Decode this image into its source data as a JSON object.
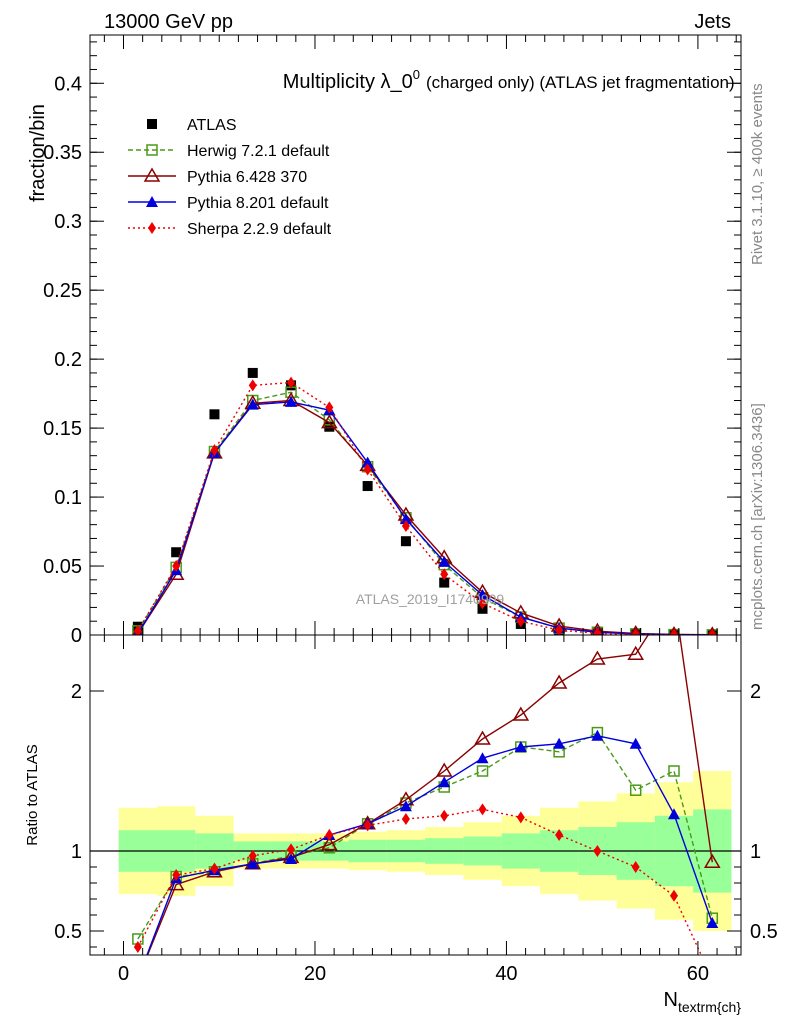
{
  "header": {
    "left": "13000 GeV pp",
    "right": "Jets"
  },
  "side_labels": {
    "rivet": "Rivet 3.1.10, ≥ 400k events",
    "mcplots": "mcplots.cern.ch [arXiv:1306.3436]"
  },
  "colors": {
    "ATLAS": "#000000",
    "Herwig": "#4a9a1a",
    "Pythia6": "#8b0000",
    "Pythia8": "#0000dd",
    "Sherpa": "#ee0000",
    "band_inner": "#99ff99",
    "band_outer": "#ffff99"
  },
  "chart_data": [
    {
      "type": "scatter",
      "title_main": "Multiplicity λ_0",
      "title_sup": "0",
      "title_rest": "(charged only) (ATLAS jet fragmentation)",
      "ylabel": "fraction/bin",
      "watermark": "ATLAS_2019_I1740909",
      "ylim": [
        0,
        0.435
      ],
      "yticks": [
        0,
        0.05,
        0.1,
        0.15,
        0.2,
        0.25,
        0.3,
        0.35,
        0.4
      ],
      "ytick_labels": [
        "0",
        "0.05",
        "0.1",
        "0.15",
        "0.2",
        "0.25",
        "0.3",
        "0.35",
        "0.4"
      ],
      "x": [
        1.5,
        5.5,
        9.5,
        13.5,
        17.5,
        21.5,
        25.5,
        29.5,
        33.5,
        37.5,
        41.5,
        45.5,
        49.5,
        53.5,
        57.5,
        61.5
      ],
      "series": [
        {
          "name": "ATLAS",
          "style": "data",
          "values": [
            0.006,
            0.06,
            0.16,
            0.19,
            0.181,
            0.151,
            0.108,
            0.068,
            0.038,
            0.019,
            0.008,
            0.003,
            0.0012,
            0.0005,
            0.0002,
            0.0001
          ]
        },
        {
          "name": "Herwig 7.2.1 default",
          "style": "herwig",
          "values": [
            0.003,
            0.049,
            0.133,
            0.17,
            0.176,
            0.156,
            0.122,
            0.085,
            0.051,
            0.027,
            0.013,
            0.005,
            0.002,
            0.0008,
            0.0003,
            0.0001
          ]
        },
        {
          "name": "Pythia 6.428 370",
          "style": "pythia6",
          "values": [
            0.001,
            0.044,
            0.132,
            0.168,
            0.17,
            0.154,
            0.123,
            0.087,
            0.056,
            0.031,
            0.016,
            0.0065,
            0.0028,
            0.0011,
            0.0004,
            0.0002
          ]
        },
        {
          "name": "Pythia 8.201 default",
          "style": "pythia8",
          "values": [
            0.001,
            0.047,
            0.132,
            0.167,
            0.169,
            0.163,
            0.125,
            0.084,
            0.053,
            0.029,
            0.013,
            0.005,
            0.002,
            0.0008,
            0.0003,
            0.0001
          ]
        },
        {
          "name": "Sherpa 2.2.9 default",
          "style": "sherpa",
          "values": [
            0.003,
            0.05,
            0.134,
            0.181,
            0.183,
            0.165,
            0.12,
            0.079,
            0.044,
            0.023,
            0.01,
            0.0035,
            0.0012,
            0.0004,
            0.0001,
            0.0
          ]
        }
      ]
    },
    {
      "type": "line",
      "ylabel": "Ratio to ATLAS",
      "xlabel_main": "N",
      "xlabel_sub": "textrm{ch}",
      "xlim": [
        -3.5,
        64.5
      ],
      "ylim": [
        0.35,
        2.35
      ],
      "xticks": [
        0,
        20,
        40,
        60
      ],
      "xtick_labels": [
        "0",
        "20",
        "40",
        "60"
      ],
      "yticks": [
        0.5,
        1,
        2
      ],
      "ytick_labels": [
        "0.5",
        "1",
        "2"
      ],
      "reference_line": 1,
      "band_edges": [
        -0.5,
        3.5,
        7.5,
        11.5,
        15.5,
        19.5,
        23.5,
        27.5,
        31.5,
        35.5,
        39.5,
        43.5,
        47.5,
        51.5,
        55.5,
        59.5,
        63.5
      ],
      "band_inner": [
        0.13,
        0.13,
        0.11,
        0.06,
        0.06,
        0.06,
        0.07,
        0.07,
        0.08,
        0.09,
        0.11,
        0.13,
        0.15,
        0.18,
        0.22,
        0.26
      ],
      "band_outer": [
        0.27,
        0.28,
        0.22,
        0.11,
        0.11,
        0.11,
        0.12,
        0.13,
        0.15,
        0.18,
        0.22,
        0.27,
        0.31,
        0.36,
        0.43,
        0.5
      ],
      "x": [
        1.5,
        5.5,
        9.5,
        13.5,
        17.5,
        21.5,
        25.5,
        29.5,
        33.5,
        37.5,
        41.5,
        45.5,
        49.5,
        53.5,
        57.5,
        61.5
      ],
      "series": [
        {
          "name": "Herwig 7.2.1 default",
          "style": "herwig",
          "values": [
            0.45,
            0.84,
            0.87,
            0.92,
            0.97,
            1.02,
            1.17,
            1.3,
            1.4,
            1.5,
            1.65,
            1.62,
            1.74,
            1.38,
            1.5,
            0.58
          ]
        },
        {
          "name": "Pythia 6.428 370",
          "style": "pythia6",
          "values": [
            0.2,
            0.79,
            0.87,
            0.92,
            0.96,
            1.04,
            1.17,
            1.32,
            1.5,
            1.7,
            1.85,
            2.05,
            2.2,
            2.23,
            2.6,
            0.93
          ]
        },
        {
          "name": "Pythia 8.201 default",
          "style": "pythia8",
          "values": [
            0.2,
            0.83,
            0.88,
            0.92,
            0.95,
            1.1,
            1.17,
            1.28,
            1.43,
            1.58,
            1.65,
            1.67,
            1.72,
            1.67,
            1.23,
            0.55
          ]
        },
        {
          "name": "Sherpa 2.2.9 default",
          "style": "sherpa",
          "values": [
            0.4,
            0.85,
            0.89,
            0.97,
            1.01,
            1.1,
            1.16,
            1.2,
            1.22,
            1.26,
            1.21,
            1.1,
            1.0,
            0.9,
            0.72,
            0.2
          ]
        }
      ]
    }
  ]
}
